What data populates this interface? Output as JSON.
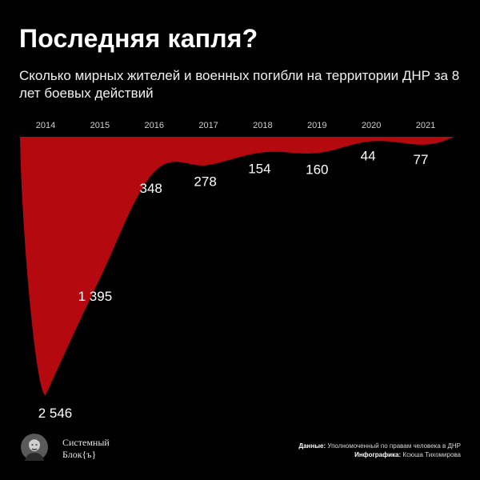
{
  "header": {
    "title": "Последняя капля?",
    "subtitle": "Сколько мирных жителей и военных погибли на территории ДНР за 8 лет боевых действий"
  },
  "chart_data": {
    "type": "area",
    "title": "Последняя капля?",
    "subtitle": "Сколько мирных жителей и военных погибли на территории ДНР за 8 лет боевых действий",
    "categories": [
      "2014",
      "2015",
      "2016",
      "2017",
      "2018",
      "2019",
      "2020",
      "2021"
    ],
    "data_labels": [
      "2 546",
      "1 395",
      "348",
      "278",
      "154",
      "160",
      "44",
      "77"
    ],
    "series": [
      {
        "values": [
          2546,
          1395,
          348,
          278,
          154,
          160,
          44,
          77
        ],
        "color": "#b3090f"
      }
    ],
    "ylim": [
      0,
      2546
    ],
    "orientation": "inverted",
    "grid": false
  },
  "branding": {
    "line1": "Системный",
    "line2": "Блок{ъ}",
    "logo_icon": "portrait-logo-icon"
  },
  "credits": {
    "data_label": "Данные:",
    "data_value": "Уполномоченный по правам человека в ДНР",
    "infographic_label": "Инфографика:",
    "infographic_value": "Ксюша Тихомирова"
  },
  "colors": {
    "background": "#000000",
    "fill": "#b3090f",
    "text": "#ffffff"
  }
}
